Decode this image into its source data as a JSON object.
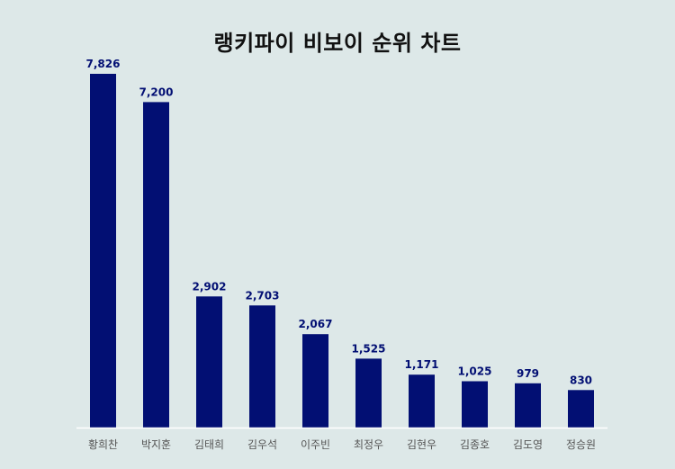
{
  "chart_data": {
    "type": "bar",
    "title": "랭키파이 비보이 순위 차트",
    "categories": [
      "황희찬",
      "박지훈",
      "김태희",
      "김우석",
      "이주빈",
      "최정우",
      "김현우",
      "김종호",
      "김도영",
      "정승원"
    ],
    "values": [
      7826,
      7200,
      2902,
      2703,
      2067,
      1525,
      1171,
      1025,
      979,
      830
    ],
    "value_labels": [
      "7,826",
      "7,200",
      "2,902",
      "2,703",
      "2,067",
      "1,525",
      "1,171",
      "1,025",
      "979",
      "830"
    ],
    "xlabel": "",
    "ylabel": "",
    "ylim": [
      0,
      7826
    ],
    "grid": false,
    "legend": "none",
    "colors": {
      "bar": "#020f73",
      "label": "#020f73",
      "background": "#dde8e8",
      "baseline": "#ffffff"
    }
  }
}
